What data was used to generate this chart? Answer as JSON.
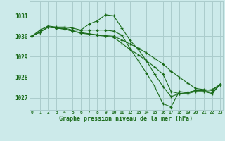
{
  "background_color": "#cceaea",
  "grid_color": "#aacccc",
  "line_color": "#1a6b1a",
  "xlabel": "Graphe pression niveau de la mer (hPa)",
  "xlabel_color": "#1a6b1a",
  "yticks": [
    1027,
    1028,
    1029,
    1030,
    1031
  ],
  "xticks": [
    0,
    1,
    2,
    3,
    4,
    5,
    6,
    7,
    8,
    9,
    10,
    11,
    12,
    13,
    14,
    15,
    16,
    17,
    18,
    19,
    20,
    21,
    22,
    23
  ],
  "xlim": [
    -0.3,
    23.3
  ],
  "ylim": [
    1026.4,
    1031.7
  ],
  "series": [
    [
      1030.0,
      1030.3,
      1030.5,
      1030.45,
      1030.45,
      1030.4,
      1030.3,
      1030.6,
      1030.75,
      1031.05,
      1031.0,
      1030.4,
      1029.8,
      1029.35,
      1028.8,
      1028.15,
      1027.55,
      1027.05,
      1027.2,
      1027.25,
      1027.35,
      1027.35,
      1027.4,
      1027.65
    ],
    [
      1030.0,
      1030.2,
      1030.45,
      1030.4,
      1030.4,
      1030.3,
      1030.3,
      1030.3,
      1030.3,
      1030.3,
      1030.25,
      1030.05,
      1029.4,
      1028.8,
      1028.2,
      1027.55,
      1026.7,
      1026.55,
      1027.3,
      1027.25,
      1027.35,
      1027.35,
      1027.25,
      1027.65
    ],
    [
      1030.0,
      1030.2,
      1030.45,
      1030.4,
      1030.35,
      1030.25,
      1030.15,
      1030.1,
      1030.05,
      1030.0,
      1029.95,
      1029.65,
      1029.35,
      1029.1,
      1028.8,
      1028.5,
      1028.15,
      1027.3,
      1027.2,
      1027.2,
      1027.3,
      1027.3,
      1027.2,
      1027.65
    ],
    [
      1030.0,
      1030.2,
      1030.45,
      1030.4,
      1030.35,
      1030.25,
      1030.18,
      1030.12,
      1030.07,
      1030.03,
      1030.0,
      1029.82,
      1029.62,
      1029.42,
      1029.18,
      1028.92,
      1028.65,
      1028.3,
      1028.0,
      1027.72,
      1027.45,
      1027.4,
      1027.35,
      1027.65
    ]
  ]
}
